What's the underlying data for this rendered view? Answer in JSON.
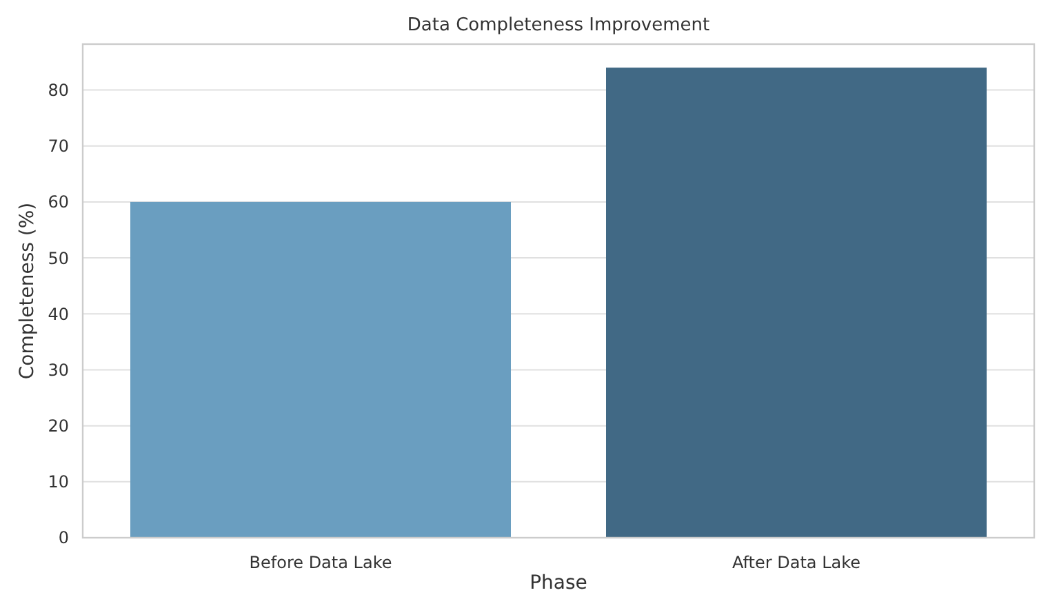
{
  "chart_data": {
    "type": "bar",
    "title": "Data Completeness Improvement",
    "xlabel": "Phase",
    "ylabel": "Completeness (%)",
    "categories": [
      "Before Data Lake",
      "After Data Lake"
    ],
    "values": [
      60,
      84
    ],
    "colors": [
      "#6a9ec0",
      "#416985"
    ],
    "ylim": [
      0,
      88.2
    ],
    "yticks": [
      0,
      10,
      20,
      30,
      40,
      50,
      60,
      70,
      80
    ],
    "grid": "y"
  }
}
